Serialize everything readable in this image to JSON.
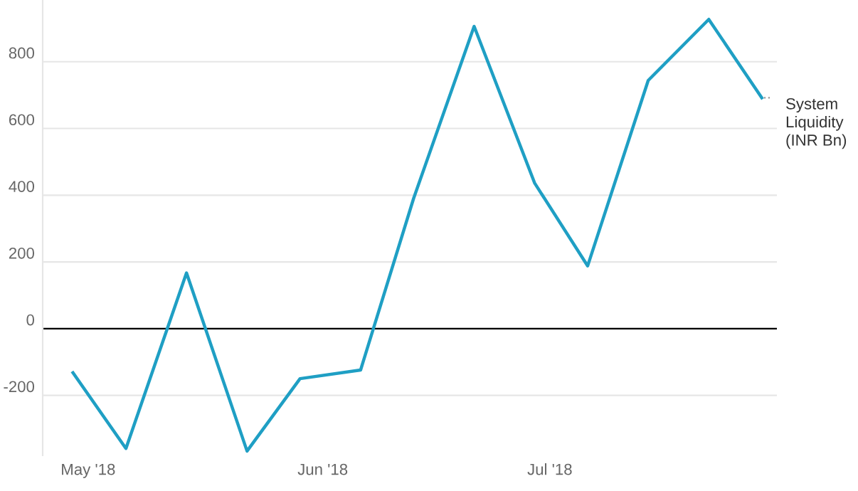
{
  "chart_data": {
    "type": "line",
    "x": [
      "2018-04-29",
      "2018-05-06",
      "2018-05-14",
      "2018-05-22",
      "2018-05-29",
      "2018-06-06",
      "2018-06-13",
      "2018-06-21",
      "2018-06-29",
      "2018-07-06",
      "2018-07-14",
      "2018-07-22",
      "2018-07-29"
    ],
    "series": [
      {
        "name": "System Liquidity (INR Bn)",
        "color": "#1f9fc4",
        "values": [
          -132,
          -359,
          167,
          -367,
          -150,
          -124,
          390,
          906,
          436,
          188,
          744,
          927,
          692
        ]
      }
    ],
    "xlim": [
      "2018-04-25",
      "2018-07-31"
    ],
    "xticks": [
      {
        "value": "2018-05-01",
        "label": "May '18"
      },
      {
        "value": "2018-06-01",
        "label": "Jun '18"
      },
      {
        "value": "2018-07-01",
        "label": "Jul '18"
      }
    ],
    "ylim": [
      -380,
      985
    ],
    "yticks": [
      -200,
      0,
      200,
      400,
      600,
      800
    ],
    "ref_lines": [
      {
        "axis": "y",
        "value": 0,
        "color": "#000000"
      }
    ],
    "grid": "y",
    "legend": false,
    "marker": "none",
    "line_style": "solid"
  }
}
